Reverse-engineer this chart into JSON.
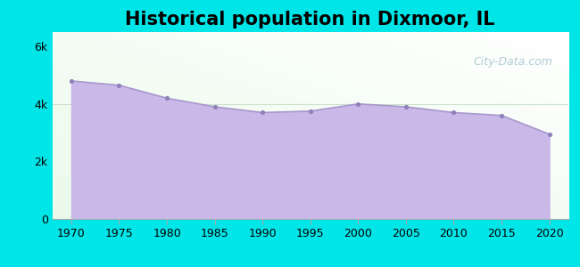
{
  "title": "Historical population in Dixmoor, IL",
  "years": [
    1970,
    1975,
    1980,
    1985,
    1990,
    1995,
    2000,
    2005,
    2010,
    2015,
    2020
  ],
  "population": [
    4800,
    4650,
    4200,
    3900,
    3700,
    3750,
    4000,
    3900,
    3700,
    3600,
    2950
  ],
  "fill_color": "#c9b8e8",
  "line_color": "#a898cc",
  "marker_color": "#9080bb",
  "outer_background": "#00e5e8",
  "yticks": [
    0,
    2000,
    4000,
    6000
  ],
  "ytick_labels": [
    "0",
    "2k",
    "4k",
    "6k"
  ],
  "xticks": [
    1970,
    1975,
    1980,
    1985,
    1990,
    1995,
    2000,
    2005,
    2010,
    2015,
    2020
  ],
  "ylim": [
    0,
    6500
  ],
  "xlim": [
    1968,
    2022
  ],
  "title_fontsize": 15,
  "tick_fontsize": 9,
  "gridline_y": 4000,
  "gridline_color": "#c8dfc8",
  "watermark": "City-Data.com",
  "watermark_color": "#9abccc"
}
